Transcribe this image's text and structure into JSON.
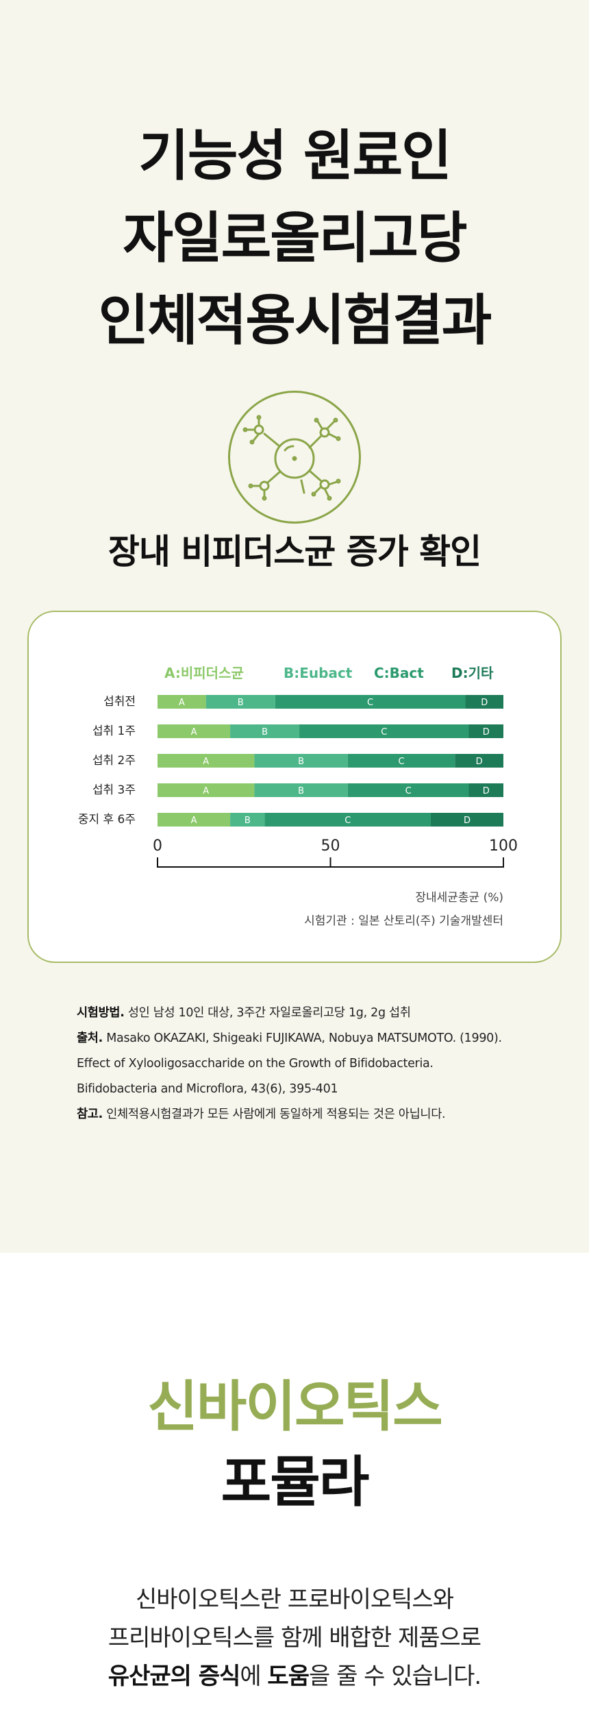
{
  "hero": {
    "title_lines": [
      "기능성 원료인",
      "자일로올리고당",
      "인체적용시험결과"
    ],
    "icon": "molecule-icon",
    "subtitle": "장내 비피더스균 증가 확인"
  },
  "chart_data": {
    "type": "bar",
    "stacked": true,
    "orientation": "horizontal",
    "legend": [
      {
        "label": "A:비피더스균",
        "color": "#8cc96a"
      },
      {
        "label": "B:Eubact",
        "color": "#4db78a"
      },
      {
        "label": "C:Bact",
        "color": "#2c9a6e"
      },
      {
        "label": "D:기타",
        "color": "#1e7b58"
      }
    ],
    "categories": [
      "섭취전",
      "섭취 1주",
      "섭취 2주",
      "섭취 3주",
      "중지 후 6주"
    ],
    "segment_labels": [
      "A",
      "B",
      "C",
      "D"
    ],
    "series": [
      {
        "name": "A",
        "values": [
          14,
          21,
          28,
          28,
          21
        ]
      },
      {
        "name": "B",
        "values": [
          20,
          20,
          27,
          27,
          10
        ]
      },
      {
        "name": "C",
        "values": [
          55,
          49,
          31,
          35,
          48
        ]
      },
      {
        "name": "D",
        "values": [
          11,
          10,
          14,
          10,
          21
        ]
      }
    ],
    "xticks": [
      "0",
      "50",
      "100"
    ],
    "xlim": [
      0,
      100
    ],
    "xlabel": "장내세균총균 (%)",
    "source": "시험기관 : 일본 산토리(주) 기술개발센터"
  },
  "notes": {
    "method_label": "시험방법.",
    "method_text": " 성인 남성 10인 대상, 3주간 자일로올리고당 1g, 2g 섭취",
    "source_label": "출처.",
    "source_text": " Masako OKAZAKI, Shigeaki FUJIKAWA, Nobuya MATSUMOTO. (1990).",
    "source_line2": "Effect of Xylooligosaccharide on the Growth of Bifidobacteria.",
    "source_line3": "Bifidobacteria and Microflora, 43(6), 395-401",
    "ref_label": "참고.",
    "ref_text": " 인체적용시험결과가 모든 사람에게 동일하게 적용되는 것은 아닙니다."
  },
  "synbiotics": {
    "title_green": "신바이오틱스",
    "title_black": "포뮬라",
    "line1": "신바이오틱스란 프로바이오틱스와",
    "line2": "프리바이오틱스를 함께 배합한 제품으로",
    "line3_bold1": "유산균의 증식",
    "line3_mid": "에 ",
    "line3_bold2": "도움",
    "line3_rest": "을 줄 수 있습니다."
  }
}
